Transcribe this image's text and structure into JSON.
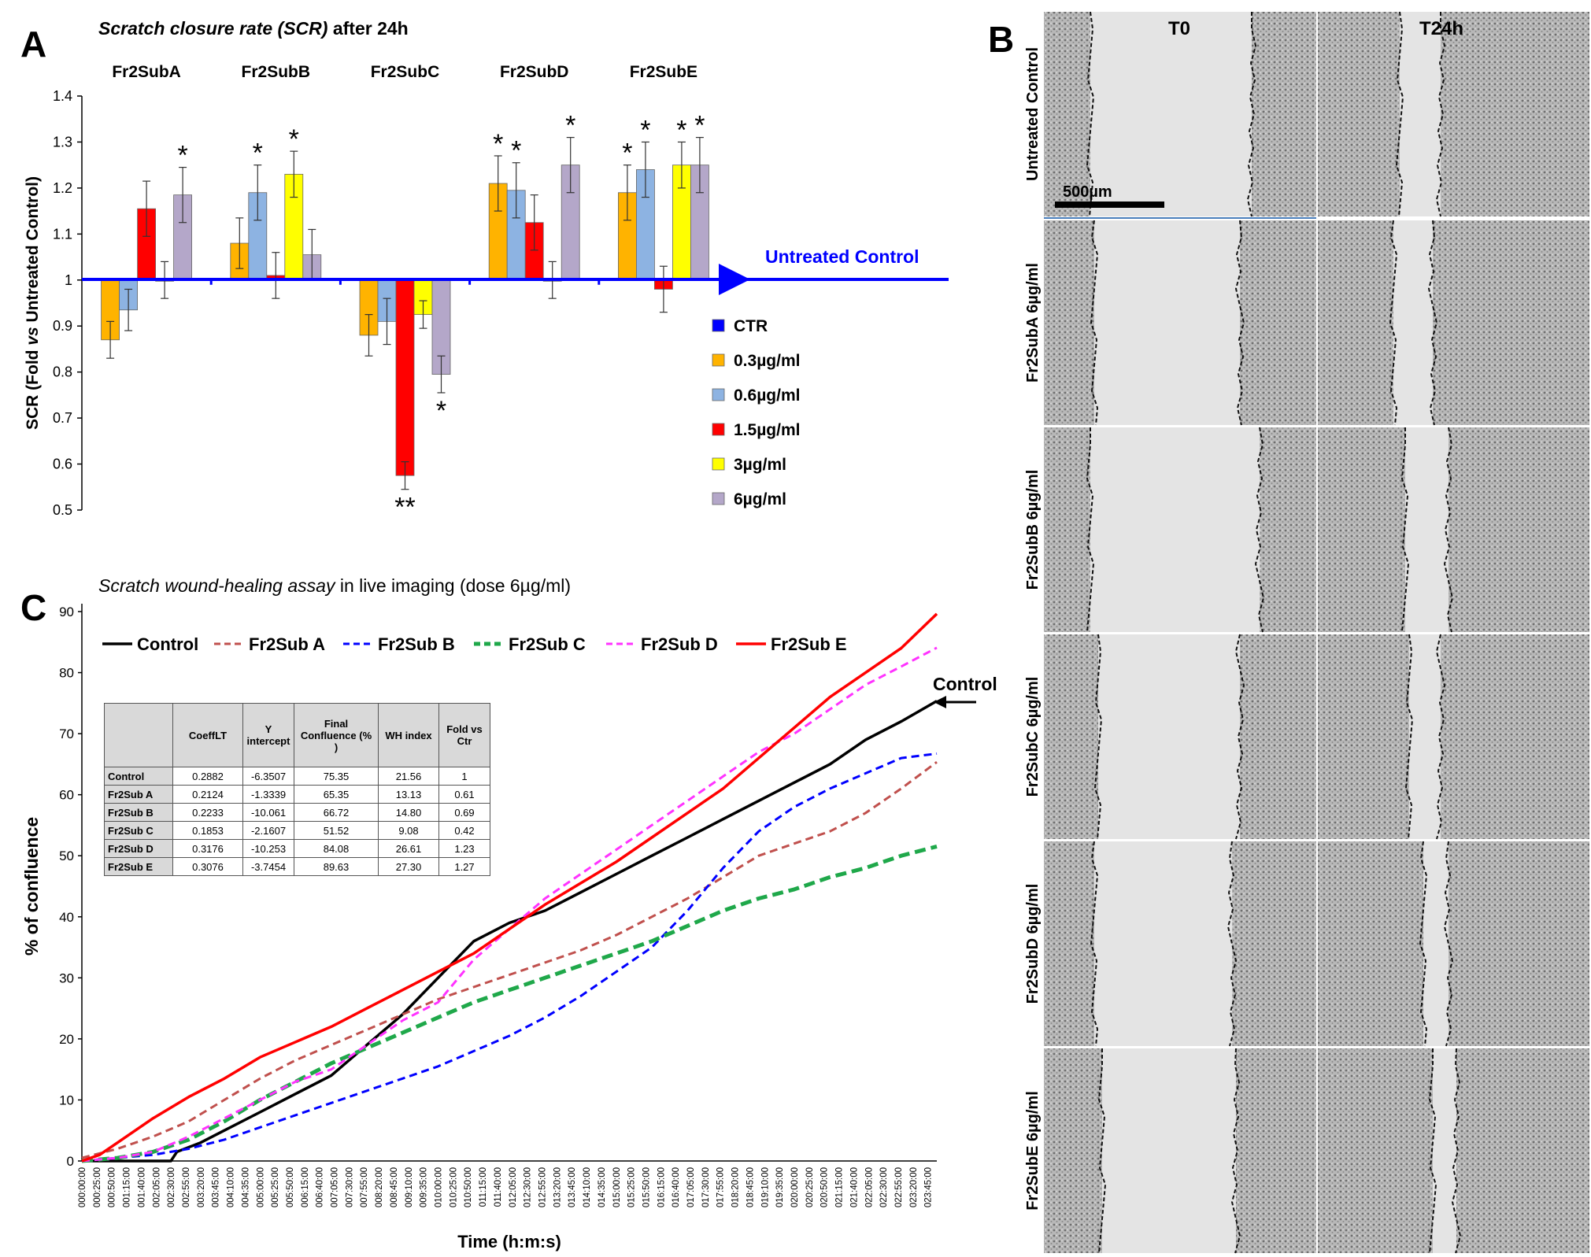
{
  "panels": {
    "a": "A",
    "b": "B",
    "c": "C"
  },
  "panel_a": {
    "title_italic": "Scratch closure rate (SCR)",
    "title_rest": " after 24h",
    "reference_label": "Untreated Control",
    "legend": [
      {
        "label": "CTR",
        "color": "#0000ff",
        "bold": true
      },
      {
        "label": "0.3µg/ml",
        "color": "#ffb300"
      },
      {
        "label": "0.6µg/ml",
        "color": "#8db3e2"
      },
      {
        "label": "1.5µg/ml",
        "color": "#ff0000"
      },
      {
        "label": "3µg/ml",
        "color": "#ffff00"
      },
      {
        "label": "6µg/ml",
        "color": "#b4a7c9"
      }
    ]
  },
  "panel_b": {
    "col_t0": "T0",
    "col_t24": "T24h",
    "scale_bar": "500µm",
    "rows": [
      "Untreated Control",
      "Fr2SubA  6µg/ml",
      "Fr2SubB 6µg/ml",
      "Fr2SubC 6µg/ml",
      "Fr2SubD 6µg/ml",
      "Fr2SubE 6µg/ml"
    ]
  },
  "panel_c": {
    "title_italic": "Scratch wound-healing assay",
    "title_rest": " in live imaging (dose 6µg/ml)",
    "control_annotation": "Control",
    "table": {
      "headers": [
        "",
        "CoeffLT",
        "Y intercept",
        "Final Confluence (% )",
        "WH index",
        "Fold vs Ctr"
      ],
      "rows": [
        [
          "Control",
          "0.2882",
          "-6.3507",
          "75.35",
          "21.56",
          "1"
        ],
        [
          "Fr2Sub A",
          "0.2124",
          "-1.3339",
          "65.35",
          "13.13",
          "0.61"
        ],
        [
          "Fr2Sub B",
          "0.2233",
          "-10.061",
          "66.72",
          "14.80",
          "0.69"
        ],
        [
          "Fr2Sub C",
          "0.1853",
          "-2.1607",
          "51.52",
          "9.08",
          "0.42"
        ],
        [
          "Fr2Sub D",
          "0.3176",
          "-10.253",
          "84.08",
          "26.61",
          "1.23"
        ],
        [
          "Fr2Sub E",
          "0.3076",
          "-3.7454",
          "89.63",
          "27.30",
          "1.27"
        ]
      ]
    }
  },
  "chart_data": [
    {
      "type": "bar",
      "title": "Scratch closure rate (SCR) after 24h",
      "xlabel": "",
      "ylabel": "SCR (Fold vs Untreated Control)",
      "ylim": [
        0.5,
        1.4
      ],
      "yticks": [
        0.5,
        0.6,
        0.7,
        0.8,
        0.9,
        1,
        1.1,
        1.2,
        1.3,
        1.4
      ],
      "baseline": 1,
      "categories": [
        "Fr2SubA",
        "Fr2SubB",
        "Fr2SubC",
        "Fr2SubD",
        "Fr2SubE"
      ],
      "series": [
        {
          "name": "0.3µg/ml",
          "color": "#ffb300",
          "values": [
            0.87,
            1.08,
            0.88,
            1.21,
            1.19
          ],
          "errors": [
            0.04,
            0.055,
            0.045,
            0.06,
            0.06
          ],
          "stars": [
            "",
            "",
            "",
            "*",
            "*"
          ]
        },
        {
          "name": "0.6µg/ml",
          "color": "#8db3e2",
          "values": [
            0.935,
            1.19,
            0.91,
            1.195,
            1.24
          ],
          "errors": [
            0.045,
            0.06,
            0.05,
            0.06,
            0.06
          ],
          "stars": [
            "",
            "*",
            "",
            "*",
            "*"
          ]
        },
        {
          "name": "1.5µg/ml",
          "color": "#ff0000",
          "values": [
            1.155,
            1.01,
            0.575,
            1.125,
            0.98
          ],
          "errors": [
            0.06,
            0.05,
            0.03,
            0.06,
            0.05
          ],
          "stars": [
            "",
            "",
            "**",
            "",
            ""
          ]
        },
        {
          "name": "3µg/ml",
          "color": "#ffff00",
          "values": [
            1.0,
            1.23,
            0.925,
            1.0,
            1.25
          ],
          "errors": [
            0.04,
            0.05,
            0.03,
            0.04,
            0.05
          ],
          "stars": [
            "",
            "*",
            "",
            "",
            "*"
          ]
        },
        {
          "name": "6µg/ml",
          "color": "#b4a7c9",
          "values": [
            1.185,
            1.055,
            0.795,
            1.25,
            1.25
          ],
          "errors": [
            0.06,
            0.055,
            0.04,
            0.06,
            0.06
          ],
          "stars": [
            "*",
            "",
            "*",
            "*",
            "*"
          ]
        }
      ]
    },
    {
      "type": "line",
      "title": "Scratch wound-healing assay in live imaging (dose 6µg/ml)",
      "xlabel": "Time (h:m:s)",
      "ylabel": "% of confluence",
      "ylim": [
        0,
        90
      ],
      "yticks": [
        0,
        10,
        20,
        30,
        40,
        50,
        60,
        70,
        80,
        90
      ],
      "x_unit": "minutes",
      "xlim": [
        0,
        1440
      ],
      "xtick_interval_min": 25,
      "xtick_count": 58,
      "series": [
        {
          "name": "Control",
          "color": "#000000",
          "dash": "",
          "width": 3.5,
          "points": [
            [
              0,
              0
            ],
            [
              60,
              0
            ],
            [
              120,
              0
            ],
            [
              150,
              0
            ],
            [
              160,
              1.5
            ],
            [
              200,
              3
            ],
            [
              240,
              5
            ],
            [
              300,
              8
            ],
            [
              360,
              11
            ],
            [
              420,
              14
            ],
            [
              480,
              19
            ],
            [
              540,
              24
            ],
            [
              600,
              30
            ],
            [
              660,
              36
            ],
            [
              720,
              39
            ],
            [
              780,
              41
            ],
            [
              840,
              44
            ],
            [
              900,
              47
            ],
            [
              960,
              50
            ],
            [
              1020,
              53
            ],
            [
              1080,
              56
            ],
            [
              1140,
              59
            ],
            [
              1200,
              62
            ],
            [
              1260,
              65
            ],
            [
              1320,
              69
            ],
            [
              1380,
              72
            ],
            [
              1440,
              75.35
            ]
          ]
        },
        {
          "name": "Fr2Sub A",
          "color": "#c0504d",
          "dash": "10,6",
          "width": 3,
          "points": [
            [
              0,
              0.5
            ],
            [
              60,
              2
            ],
            [
              120,
              4
            ],
            [
              180,
              6.5
            ],
            [
              240,
              10
            ],
            [
              300,
              13.5
            ],
            [
              360,
              16.5
            ],
            [
              420,
              19
            ],
            [
              480,
              21.5
            ],
            [
              540,
              24
            ],
            [
              600,
              26.5
            ],
            [
              660,
              28.5
            ],
            [
              720,
              30.5
            ],
            [
              780,
              32.5
            ],
            [
              840,
              34.5
            ],
            [
              900,
              37
            ],
            [
              960,
              40
            ],
            [
              1020,
              43
            ],
            [
              1080,
              46.5
            ],
            [
              1140,
              50
            ],
            [
              1200,
              52
            ],
            [
              1260,
              54
            ],
            [
              1320,
              57
            ],
            [
              1380,
              61
            ],
            [
              1440,
              65.35
            ]
          ]
        },
        {
          "name": "Fr2Sub B",
          "color": "#0000ff",
          "dash": "10,6",
          "width": 3,
          "points": [
            [
              0,
              0
            ],
            [
              60,
              0.5
            ],
            [
              120,
              1
            ],
            [
              180,
              2
            ],
            [
              240,
              3.5
            ],
            [
              300,
              5.5
            ],
            [
              360,
              7.5
            ],
            [
              420,
              9.5
            ],
            [
              480,
              11.5
            ],
            [
              540,
              13.5
            ],
            [
              600,
              15.5
            ],
            [
              660,
              18
            ],
            [
              720,
              20.5
            ],
            [
              780,
              23.5
            ],
            [
              840,
              27
            ],
            [
              900,
              31
            ],
            [
              960,
              35
            ],
            [
              1020,
              41
            ],
            [
              1080,
              48
            ],
            [
              1140,
              54
            ],
            [
              1200,
              58
            ],
            [
              1260,
              61
            ],
            [
              1320,
              63.5
            ],
            [
              1380,
              66
            ],
            [
              1440,
              66.72
            ]
          ]
        },
        {
          "name": "Fr2Sub C",
          "color": "#1fa84a",
          "dash": "14,7",
          "width": 5,
          "points": [
            [
              0,
              0
            ],
            [
              60,
              0.5
            ],
            [
              120,
              1.5
            ],
            [
              180,
              3.5
            ],
            [
              240,
              6.5
            ],
            [
              300,
              10
            ],
            [
              360,
              13
            ],
            [
              420,
              16
            ],
            [
              480,
              18.5
            ],
            [
              540,
              21
            ],
            [
              600,
              23.5
            ],
            [
              660,
              26
            ],
            [
              720,
              28
            ],
            [
              780,
              30
            ],
            [
              840,
              32
            ],
            [
              900,
              34
            ],
            [
              960,
              36
            ],
            [
              1020,
              38.5
            ],
            [
              1080,
              41
            ],
            [
              1140,
              43
            ],
            [
              1200,
              44.5
            ],
            [
              1260,
              46.5
            ],
            [
              1320,
              48
            ],
            [
              1380,
              50
            ],
            [
              1440,
              51.52
            ]
          ]
        },
        {
          "name": "Fr2Sub D",
          "color": "#ff33ff",
          "dash": "10,6",
          "width": 3,
          "points": [
            [
              0,
              0
            ],
            [
              60,
              0.5
            ],
            [
              120,
              1.5
            ],
            [
              180,
              4
            ],
            [
              240,
              7
            ],
            [
              300,
              10
            ],
            [
              360,
              13
            ],
            [
              420,
              15
            ],
            [
              480,
              19
            ],
            [
              540,
              23
            ],
            [
              600,
              26
            ],
            [
              660,
              33
            ],
            [
              720,
              38
            ],
            [
              780,
              43
            ],
            [
              840,
              47
            ],
            [
              900,
              51
            ],
            [
              960,
              55
            ],
            [
              1020,
              59
            ],
            [
              1080,
              63
            ],
            [
              1140,
              67
            ],
            [
              1200,
              70
            ],
            [
              1260,
              74
            ],
            [
              1320,
              78
            ],
            [
              1380,
              81
            ],
            [
              1440,
              84.08
            ]
          ]
        },
        {
          "name": "Fr2Sub E",
          "color": "#ff0000",
          "dash": "",
          "width": 3.5,
          "points": [
            [
              0,
              0
            ],
            [
              30,
              1
            ],
            [
              60,
              3
            ],
            [
              120,
              7
            ],
            [
              180,
              10.5
            ],
            [
              240,
              13.5
            ],
            [
              300,
              17
            ],
            [
              360,
              19.5
            ],
            [
              420,
              22
            ],
            [
              480,
              25
            ],
            [
              540,
              28
            ],
            [
              600,
              31
            ],
            [
              660,
              34
            ],
            [
              720,
              38
            ],
            [
              780,
              42
            ],
            [
              840,
              45.5
            ],
            [
              900,
              49
            ],
            [
              960,
              53
            ],
            [
              1020,
              57
            ],
            [
              1080,
              61
            ],
            [
              1140,
              66
            ],
            [
              1200,
              71
            ],
            [
              1260,
              76
            ],
            [
              1320,
              80
            ],
            [
              1380,
              84
            ],
            [
              1440,
              89.63
            ]
          ]
        }
      ]
    }
  ]
}
